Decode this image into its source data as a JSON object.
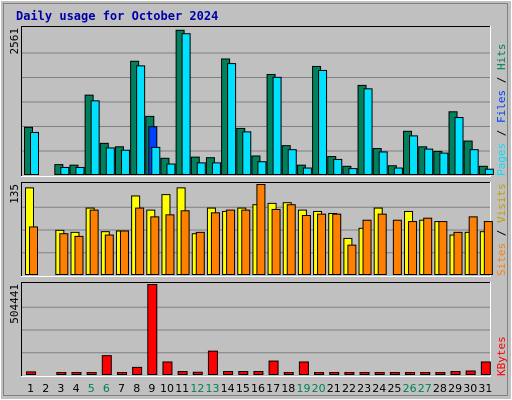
{
  "title": "Daily usage for October 2024",
  "colors": {
    "background": "#c0c0c0",
    "title": "#0000aa",
    "hits": "#00805c",
    "files": "#0040ff",
    "pages": "#00e0ff",
    "visits": "#ffff00",
    "sites": "#ff8000",
    "kbytes": "#ff0000",
    "weekend": "#00805c",
    "weekday": "#000000",
    "grid": "#808080"
  },
  "legend": {
    "pages": "Pages",
    "files": "Files",
    "hits": "Hits",
    "visits": "Visits",
    "sites": "Sites",
    "kbytes": "KBytes",
    "sep": " / "
  },
  "chart_data": [
    {
      "type": "bar",
      "panel": "hits-files-pages",
      "ymax_label": "2561",
      "ylim": [
        0,
        2561
      ],
      "categories": [
        "1",
        "2",
        "3",
        "4",
        "5",
        "6",
        "7",
        "8",
        "9",
        "10",
        "11",
        "12",
        "13",
        "14",
        "15",
        "16",
        "17",
        "18",
        "19",
        "20",
        "21",
        "22",
        "23",
        "24",
        "25",
        "26",
        "27",
        "28",
        "29",
        "30",
        "31"
      ],
      "series": [
        {
          "name": "Hits",
          "values": [
            840,
            0,
            190,
            180,
            1400,
            560,
            500,
            1990,
            1030,
            300,
            2530,
            320,
            310,
            2030,
            820,
            340,
            1760,
            520,
            180,
            1900,
            330,
            160,
            1570,
            470,
            170,
            770,
            500,
            420,
            1110,
            600,
            160
          ]
        },
        {
          "name": "Files",
          "values": [
            0,
            0,
            0,
            0,
            0,
            0,
            0,
            0,
            850,
            0,
            0,
            0,
            0,
            0,
            0,
            0,
            0,
            0,
            0,
            0,
            0,
            0,
            0,
            0,
            0,
            0,
            0,
            0,
            0,
            0,
            0
          ]
        },
        {
          "name": "Pages",
          "values": [
            750,
            0,
            140,
            140,
            1300,
            480,
            440,
            1910,
            490,
            200,
            2470,
            220,
            220,
            1950,
            760,
            240,
            1710,
            450,
            130,
            1830,
            280,
            120,
            1510,
            410,
            130,
            690,
            460,
            390,
            1010,
            450,
            110
          ]
        }
      ]
    },
    {
      "type": "bar",
      "panel": "visits-sites",
      "ymax_label": "135",
      "ylim": [
        0,
        135
      ],
      "series": [
        {
          "name": "Visits",
          "values": [
            130,
            0,
            67,
            64,
            100,
            65,
            66,
            118,
            97,
            120,
            130,
            62,
            100,
            95,
            100,
            105,
            107,
            108,
            97,
            95,
            92,
            55,
            70,
            100,
            0,
            95,
            82,
            80,
            60,
            64,
            65
          ]
        },
        {
          "name": "Sites",
          "values": [
            72,
            0,
            62,
            58,
            97,
            60,
            66,
            100,
            87,
            90,
            96,
            64,
            93,
            97,
            97,
            135,
            98,
            105,
            89,
            91,
            91,
            45,
            82,
            91,
            82,
            80,
            85,
            80,
            64,
            87,
            80
          ]
        }
      ]
    },
    {
      "type": "bar",
      "panel": "kbytes",
      "ymax_label": "504441",
      "ylim": [
        0,
        504441
      ],
      "series": [
        {
          "name": "KBytes",
          "values": [
            20000,
            0,
            8000,
            8000,
            8000,
            110000,
            10000,
            45000,
            504441,
            75000,
            22000,
            18000,
            135000,
            22000,
            22000,
            22000,
            80000,
            15000,
            75000,
            15000,
            8000,
            8000,
            8000,
            8000,
            8000,
            8000,
            15000,
            15000,
            22000,
            25000,
            75000
          ]
        }
      ]
    }
  ],
  "weekend_days": [
    "5",
    "6",
    "12",
    "13",
    "19",
    "20",
    "26",
    "27"
  ]
}
